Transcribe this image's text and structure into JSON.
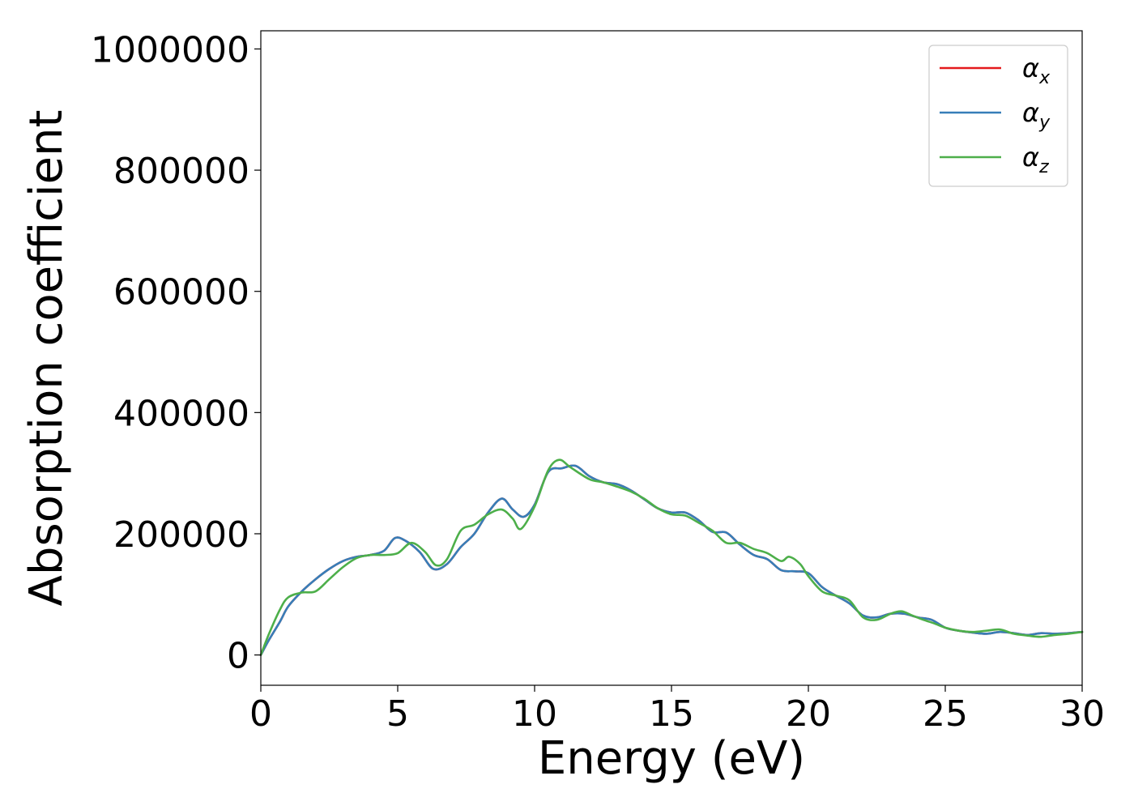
{
  "chart_data": {
    "type": "line",
    "title": "",
    "xlabel": "Energy (eV)",
    "ylabel": "Absorption coefficient",
    "xlim": [
      0,
      30
    ],
    "ylim": [
      -50000,
      1030000
    ],
    "xticks": [
      0,
      5,
      10,
      15,
      20,
      25,
      30
    ],
    "yticks": [
      0,
      200000,
      400000,
      600000,
      800000,
      1000000
    ],
    "xtick_labels": [
      "0",
      "5",
      "10",
      "15",
      "20",
      "25",
      "30"
    ],
    "ytick_labels": [
      "0",
      "200000",
      "400000",
      "600000",
      "800000",
      "1000000"
    ],
    "grid": false,
    "legend_position": "top-right",
    "series": [
      {
        "name": "α_x",
        "legend_main": "α",
        "legend_sub": "x",
        "color": "#e41a1c",
        "x": [
          0,
          0.3,
          0.7,
          1.0,
          1.5,
          2.0,
          2.5,
          3.0,
          3.5,
          4.0,
          4.5,
          4.9,
          5.3,
          5.8,
          6.3,
          6.8,
          7.3,
          7.8,
          8.3,
          8.8,
          9.2,
          9.6,
          10.0,
          10.5,
          11.0,
          11.5,
          12.0,
          12.5,
          13.0,
          13.5,
          14.0,
          14.5,
          15.0,
          15.5,
          16.0,
          16.5,
          17.0,
          17.5,
          18.0,
          18.5,
          19.0,
          19.5,
          20.0,
          20.5,
          21.0,
          21.5,
          22.0,
          22.5,
          23.0,
          23.5,
          24.0,
          24.5,
          25.0,
          25.5,
          26.0,
          26.5,
          27.0,
          27.5,
          28.0,
          28.5,
          29.0,
          29.5,
          30.0
        ],
        "y": [
          0,
          25000,
          55000,
          80000,
          105000,
          125000,
          142000,
          155000,
          162000,
          165000,
          172000,
          193000,
          188000,
          170000,
          142000,
          150000,
          178000,
          200000,
          235000,
          258000,
          240000,
          228000,
          248000,
          302000,
          308000,
          312000,
          295000,
          285000,
          282000,
          272000,
          257000,
          242000,
          235000,
          235000,
          222000,
          203000,
          202000,
          182000,
          165000,
          158000,
          140000,
          138000,
          135000,
          112000,
          98000,
          85000,
          65000,
          62000,
          68000,
          68000,
          62000,
          58000,
          45000,
          40000,
          37000,
          35000,
          38000,
          36000,
          33000,
          36000,
          35000,
          36000,
          38000
        ]
      },
      {
        "name": "α_y",
        "legend_main": "α",
        "legend_sub": "y",
        "color": "#377eb8",
        "x": [
          0,
          0.3,
          0.7,
          1.0,
          1.5,
          2.0,
          2.5,
          3.0,
          3.5,
          4.0,
          4.5,
          4.9,
          5.3,
          5.8,
          6.3,
          6.8,
          7.3,
          7.8,
          8.3,
          8.8,
          9.2,
          9.6,
          10.0,
          10.5,
          11.0,
          11.5,
          12.0,
          12.5,
          13.0,
          13.5,
          14.0,
          14.5,
          15.0,
          15.5,
          16.0,
          16.5,
          17.0,
          17.5,
          18.0,
          18.5,
          19.0,
          19.5,
          20.0,
          20.5,
          21.0,
          21.5,
          22.0,
          22.5,
          23.0,
          23.5,
          24.0,
          24.5,
          25.0,
          25.5,
          26.0,
          26.5,
          27.0,
          27.5,
          28.0,
          28.5,
          29.0,
          29.5,
          30.0
        ],
        "y": [
          0,
          25000,
          55000,
          80000,
          105000,
          125000,
          142000,
          155000,
          162000,
          165000,
          172000,
          193000,
          188000,
          170000,
          142000,
          150000,
          178000,
          200000,
          235000,
          258000,
          240000,
          228000,
          248000,
          302000,
          308000,
          312000,
          295000,
          285000,
          282000,
          272000,
          257000,
          242000,
          235000,
          235000,
          222000,
          203000,
          202000,
          182000,
          165000,
          158000,
          140000,
          138000,
          135000,
          112000,
          98000,
          85000,
          65000,
          62000,
          68000,
          68000,
          62000,
          58000,
          45000,
          40000,
          37000,
          35000,
          38000,
          36000,
          33000,
          36000,
          35000,
          36000,
          38000
        ]
      },
      {
        "name": "α_z",
        "legend_main": "α",
        "legend_sub": "z",
        "color": "#4daf4a",
        "x": [
          0,
          0.3,
          0.7,
          1.0,
          1.5,
          2.0,
          2.5,
          3.0,
          3.5,
          4.0,
          4.5,
          5.0,
          5.5,
          6.0,
          6.4,
          6.8,
          7.3,
          7.8,
          8.3,
          8.8,
          9.2,
          9.5,
          10.0,
          10.5,
          10.9,
          11.3,
          12.0,
          12.5,
          13.0,
          13.5,
          14.0,
          14.5,
          15.0,
          15.5,
          16.0,
          16.5,
          17.0,
          17.5,
          18.0,
          18.5,
          19.0,
          19.3,
          19.7,
          20.0,
          20.5,
          21.0,
          21.5,
          22.0,
          22.5,
          23.0,
          23.4,
          23.8,
          24.2,
          24.6,
          25.0,
          25.5,
          26.0,
          26.5,
          27.0,
          27.5,
          28.0,
          28.5,
          29.0,
          29.5,
          30.0
        ],
        "y": [
          0,
          35000,
          75000,
          95000,
          103000,
          105000,
          125000,
          145000,
          160000,
          165000,
          165000,
          168000,
          185000,
          170000,
          148000,
          158000,
          205000,
          215000,
          232000,
          240000,
          225000,
          208000,
          245000,
          305000,
          322000,
          310000,
          290000,
          285000,
          278000,
          270000,
          258000,
          242000,
          232000,
          230000,
          218000,
          205000,
          185000,
          185000,
          175000,
          168000,
          155000,
          162000,
          150000,
          130000,
          105000,
          98000,
          90000,
          62000,
          58000,
          68000,
          72000,
          65000,
          58000,
          52000,
          45000,
          40000,
          38000,
          40000,
          42000,
          35000,
          32000,
          30000,
          33000,
          35000,
          38000
        ]
      }
    ]
  }
}
